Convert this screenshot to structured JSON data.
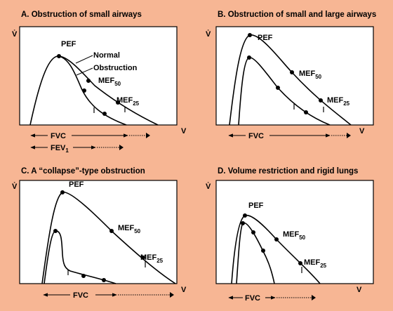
{
  "panels": {
    "a": {
      "title": "A. Obstruction of small airways",
      "y_label": "V̇",
      "x_label": "V",
      "pef": "PEF",
      "normal": "Normal",
      "obstruction": "Obstruction",
      "mef50": "MEF",
      "mef50_sub": "50",
      "mef25": "MEF",
      "mef25_sub": "25",
      "fvc": "FVC",
      "fev1": "FEV",
      "fev1_sub": "1"
    },
    "b": {
      "title": "B. Obstruction of small and large airways",
      "y_label": "V̇",
      "x_label": "V",
      "pef": "PEF",
      "mef50": "MEF",
      "mef50_sub": "50",
      "mef25": "MEF",
      "mef25_sub": "25",
      "fvc": "FVC"
    },
    "c": {
      "title": "C. A “collapse”-type obstruction",
      "y_label": "V̇",
      "x_label": "V",
      "pef": "PEF",
      "mef50": "MEF",
      "mef50_sub": "50",
      "mef25": "MEF",
      "mef25_sub": "25",
      "fvc": "FVC"
    },
    "d": {
      "title": "D. Volume restriction and rigid lungs",
      "y_label": "V̇",
      "x_label": "V",
      "pef": "PEF",
      "mef50": "MEF",
      "mef50_sub": "50",
      "mef25": "MEF",
      "mef25_sub": "25",
      "fvc": "FVC"
    }
  },
  "colors": {
    "background": "#f7b694",
    "plot_area": "#ffffff",
    "ink": "#000000"
  }
}
